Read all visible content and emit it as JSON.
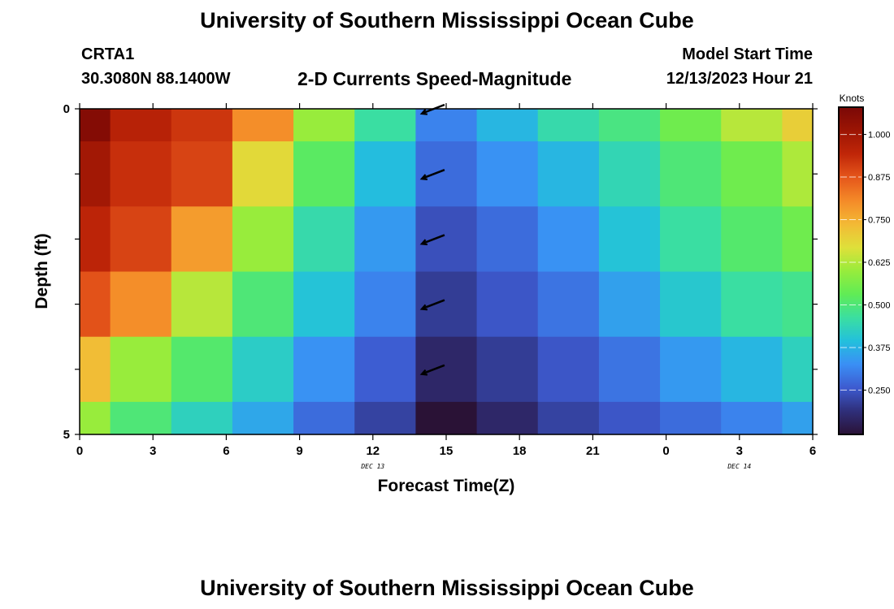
{
  "header": {
    "title": "University of Southern Mississippi Ocean Cube",
    "station_id": "CRTA1",
    "coords": "30.3080N  88.1400W",
    "subtitle": "2-D Currents Speed-Magnitude",
    "model_start_label": "Model Start Time",
    "model_start_value": "12/13/2023 Hour 21"
  },
  "footer": {
    "title": "University of Southern Mississippi Ocean Cube"
  },
  "chart_data": {
    "type": "heatmap",
    "title": "2-D Currents Speed-Magnitude",
    "xlabel": "Forecast Time(Z)",
    "ylabel": "Depth (ft)",
    "x_hours": [
      0,
      2.5,
      5,
      7.5,
      10,
      12.5,
      15,
      17.5,
      20,
      22.5,
      25,
      27.5,
      30
    ],
    "x_range_hours": [
      0,
      30
    ],
    "x_ticks": [
      {
        "hour": 0,
        "label": "0"
      },
      {
        "hour": 3,
        "label": "3"
      },
      {
        "hour": 6,
        "label": "6"
      },
      {
        "hour": 9,
        "label": "9"
      },
      {
        "hour": 12,
        "label": "12"
      },
      {
        "hour": 15,
        "label": "15"
      },
      {
        "hour": 18,
        "label": "18"
      },
      {
        "hour": 21,
        "label": "21"
      },
      {
        "hour": 24,
        "label": "0"
      },
      {
        "hour": 27,
        "label": "3"
      },
      {
        "hour": 30,
        "label": "6"
      }
    ],
    "date_labels": [
      {
        "hour": 12,
        "label": "DEC 13"
      },
      {
        "hour": 27,
        "label": "DEC 14"
      }
    ],
    "depth_levels_ft": [
      0,
      1,
      2,
      3,
      4,
      5
    ],
    "y_range_ft": [
      0,
      5
    ],
    "y_ticks": [
      {
        "ft": 0,
        "label": "0"
      },
      {
        "ft": 5,
        "label": "5"
      }
    ],
    "speed_knots": [
      [
        1.06,
        0.96,
        0.92,
        0.8,
        0.6,
        0.46,
        0.31,
        0.38,
        0.45,
        0.49,
        0.55,
        0.63,
        0.7
      ],
      [
        1.0,
        0.93,
        0.9,
        0.68,
        0.52,
        0.39,
        0.28,
        0.33,
        0.38,
        0.44,
        0.5,
        0.55,
        0.62
      ],
      [
        0.95,
        0.9,
        0.78,
        0.6,
        0.45,
        0.34,
        0.24,
        0.28,
        0.33,
        0.4,
        0.46,
        0.51,
        0.55
      ],
      [
        0.88,
        0.8,
        0.63,
        0.5,
        0.4,
        0.31,
        0.21,
        0.25,
        0.29,
        0.35,
        0.41,
        0.46,
        0.48
      ],
      [
        0.73,
        0.6,
        0.51,
        0.42,
        0.33,
        0.26,
        0.17,
        0.21,
        0.25,
        0.29,
        0.34,
        0.38,
        0.43
      ],
      [
        0.6,
        0.5,
        0.43,
        0.36,
        0.28,
        0.22,
        0.12,
        0.17,
        0.22,
        0.25,
        0.28,
        0.31,
        0.35
      ]
    ],
    "vectors": [
      {
        "hour": 14,
        "depth_ft": 0,
        "direction": "WSW"
      },
      {
        "hour": 14,
        "depth_ft": 1,
        "direction": "WSW"
      },
      {
        "hour": 14,
        "depth_ft": 2,
        "direction": "WSW"
      },
      {
        "hour": 14,
        "depth_ft": 3,
        "direction": "WSW"
      },
      {
        "hour": 14,
        "depth_ft": 4,
        "direction": "WSW"
      }
    ],
    "colorbar": {
      "title": "Knots",
      "min": 0.12,
      "max": 1.08,
      "ticks": [
        "1.000",
        "0.875",
        "0.750",
        "0.625",
        "0.500",
        "0.375",
        "0.250"
      ],
      "tick_values": [
        1.0,
        0.875,
        0.75,
        0.625,
        0.5,
        0.375,
        0.25
      ]
    },
    "colormap_stops": [
      "#2a1236",
      "#2f2f7a",
      "#3d5bd0",
      "#3a8ff5",
      "#23c0dc",
      "#3bdfa0",
      "#60ec55",
      "#98ec3c",
      "#dfe03a",
      "#f3b935",
      "#f48a28",
      "#e5561b",
      "#c02608",
      "#9c1504",
      "#7a0806"
    ]
  }
}
